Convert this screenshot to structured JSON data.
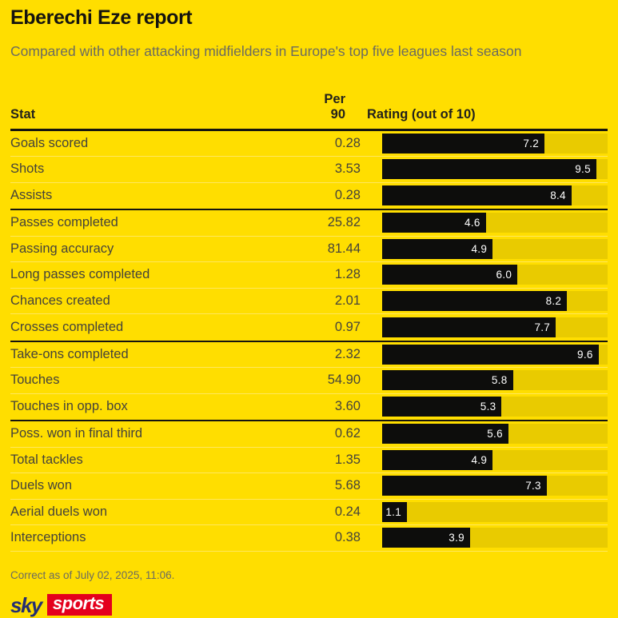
{
  "title": "Eberechi Eze report",
  "subtitle": "Compared with other attacking midfielders in Europe's top five leagues last season",
  "colors": {
    "background": "#FFDE00",
    "bar": "#0D0D0C",
    "bar_track": "#E9CB00",
    "rating_text": "#FFFFFF",
    "group_line": "#15140F",
    "row_line": "#FFE75E",
    "muted_text": "#6B6B60",
    "stat_text": "#45433A",
    "sky_navy": "#242E72",
    "sports_red": "#E4001C"
  },
  "table": {
    "headers": {
      "stat": "Stat",
      "per90_line1": "Per",
      "per90_line2": "90",
      "rating": "Rating (out of 10)"
    },
    "rating_max": 10,
    "groups": [
      {
        "rows": [
          {
            "stat": "Goals scored",
            "per90": "0.28",
            "rating": "7.2"
          },
          {
            "stat": "Shots",
            "per90": "3.53",
            "rating": "9.5"
          },
          {
            "stat": "Assists",
            "per90": "0.28",
            "rating": "8.4"
          }
        ]
      },
      {
        "rows": [
          {
            "stat": "Passes completed",
            "per90": "25.82",
            "rating": "4.6"
          },
          {
            "stat": "Passing accuracy",
            "per90": "81.44",
            "rating": "4.9"
          },
          {
            "stat": "Long passes completed",
            "per90": "1.28",
            "rating": "6.0"
          },
          {
            "stat": "Chances created",
            "per90": "2.01",
            "rating": "8.2"
          },
          {
            "stat": "Crosses completed",
            "per90": "0.97",
            "rating": "7.7"
          }
        ]
      },
      {
        "rows": [
          {
            "stat": "Take-ons completed",
            "per90": "2.32",
            "rating": "9.6"
          },
          {
            "stat": "Touches",
            "per90": "54.90",
            "rating": "5.8"
          },
          {
            "stat": "Touches in opp. box",
            "per90": "3.60",
            "rating": "5.3"
          }
        ]
      },
      {
        "rows": [
          {
            "stat": "Poss. won in final third",
            "per90": "0.62",
            "rating": "5.6"
          },
          {
            "stat": "Total tackles",
            "per90": "1.35",
            "rating": "4.9"
          },
          {
            "stat": "Duels won",
            "per90": "5.68",
            "rating": "7.3"
          },
          {
            "stat": "Aerial duels won",
            "per90": "0.24",
            "rating": "1.1"
          },
          {
            "stat": "Interceptions",
            "per90": "0.38",
            "rating": "3.9"
          }
        ]
      }
    ]
  },
  "footer": {
    "note": "Correct as of July 02, 2025, 11:06."
  },
  "logo": {
    "sky": "sky",
    "sports": "sports"
  },
  "chart_data": {
    "type": "bar",
    "orientation": "horizontal",
    "title": "Eberechi Eze report",
    "subtitle": "Compared with other attacking midfielders in Europe's top five leagues last season",
    "categories": [
      "Goals scored",
      "Shots",
      "Assists",
      "Passes completed",
      "Passing accuracy",
      "Long passes completed",
      "Chances created",
      "Crosses completed",
      "Take-ons completed",
      "Touches",
      "Touches in opp. box",
      "Poss. won in final third",
      "Total tackles",
      "Duels won",
      "Aerial duels won",
      "Interceptions"
    ],
    "series": [
      {
        "name": "Per 90",
        "values": [
          0.28,
          3.53,
          0.28,
          25.82,
          81.44,
          1.28,
          2.01,
          0.97,
          2.32,
          54.9,
          3.6,
          0.62,
          1.35,
          5.68,
          0.24,
          0.38
        ]
      },
      {
        "name": "Rating (out of 10)",
        "values": [
          7.2,
          9.5,
          8.4,
          4.6,
          4.9,
          6.0,
          8.2,
          7.7,
          9.6,
          5.8,
          5.3,
          5.6,
          4.9,
          7.3,
          1.1,
          3.9
        ]
      }
    ],
    "xlabel": "Rating (out of 10)",
    "ylabel": "Stat",
    "xlim": [
      0,
      10
    ],
    "grid": false,
    "legend_position": "none",
    "group_breaks_after": [
      "Assists",
      "Crosses completed",
      "Touches in opp. box"
    ]
  }
}
